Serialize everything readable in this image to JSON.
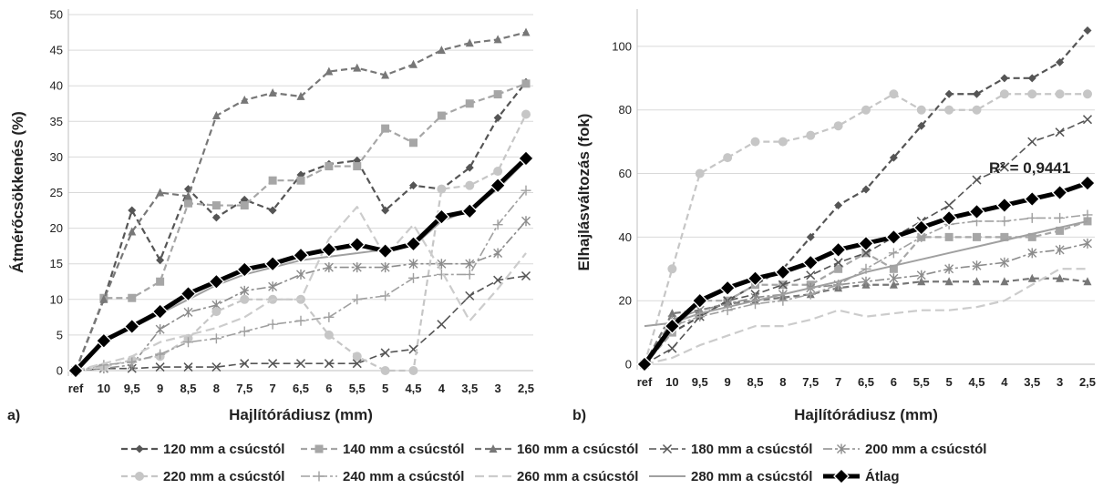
{
  "chart_data": [
    {
      "type": "line",
      "panel_label": "a)",
      "xlabel": "Hajlítórádiusz (mm)",
      "ylabel": "Átmérőcsökkenés (%)",
      "ylim": [
        0,
        50
      ],
      "yticks": [
        0,
        5,
        10,
        15,
        20,
        25,
        30,
        35,
        40,
        45,
        50
      ],
      "grid": true,
      "categories": [
        "ref",
        "10",
        "9,5",
        "9",
        "8,5",
        "8",
        "7,5",
        "7",
        "6,5",
        "6",
        "5,5",
        "5",
        "4,5",
        "4",
        "3,5",
        "3",
        "2,5"
      ],
      "series": [
        {
          "name": "120 mm a csúcstól",
          "values": [
            0,
            10,
            22.5,
            15.5,
            25.5,
            21.5,
            24,
            22.5,
            27.5,
            29,
            29.5,
            22.5,
            26,
            25.5,
            28.5,
            35.5,
            40.5
          ]
        },
        {
          "name": "140 mm a csúcstól",
          "values": [
            0,
            10.2,
            10.2,
            12.5,
            23.5,
            23.2,
            23.2,
            26.7,
            26.7,
            28.7,
            28.7,
            34,
            32,
            35.8,
            37.5,
            38.8,
            40.3
          ]
        },
        {
          "name": "160 mm a csúcstól",
          "values": [
            0,
            10,
            19.5,
            25,
            24.5,
            35.8,
            38,
            39,
            38.5,
            42,
            42.5,
            41.5,
            43,
            45,
            46,
            46.5,
            47.5
          ]
        },
        {
          "name": "180 mm a csúcstól",
          "values": [
            0,
            0.3,
            0.3,
            0.5,
            0.5,
            0.5,
            1,
            1,
            1,
            1,
            1,
            2.5,
            3,
            6.5,
            10.5,
            12.7,
            13.3
          ]
        },
        {
          "name": "200 mm a csúcstól",
          "values": [
            0,
            0.3,
            0.8,
            5.8,
            8.2,
            9.2,
            11.2,
            11.8,
            13.5,
            14.5,
            14.5,
            14.5,
            15,
            15,
            15,
            16.5,
            21
          ]
        },
        {
          "name": "220 mm a csúcstól",
          "values": [
            0,
            0.5,
            1.5,
            2,
            4.5,
            8.3,
            10,
            10,
            10,
            5,
            2,
            0,
            0,
            25.5,
            26,
            28,
            36
          ]
        },
        {
          "name": "240 mm a csúcstól",
          "values": [
            0,
            0.8,
            1.2,
            2.3,
            4,
            4.5,
            5.5,
            6.5,
            7,
            7.5,
            10,
            10.5,
            13,
            13.5,
            13.5,
            20.5,
            25.3
          ]
        },
        {
          "name": "260 mm a csúcstól",
          "values": [
            0,
            1,
            2,
            4,
            5,
            6,
            7.5,
            10,
            10,
            18.5,
            23,
            16,
            20.5,
            14,
            7,
            11.5,
            16.5
          ]
        },
        {
          "name": "280 mm a csúcstól",
          "values": [
            0,
            4,
            6,
            8,
            10,
            12,
            13.5,
            14.5,
            15.5,
            16,
            16.5,
            17,
            17.5,
            21,
            22.5,
            25.5,
            29.5
          ]
        },
        {
          "name": "Átlag",
          "values": [
            0,
            4.2,
            6.2,
            8.3,
            10.8,
            12.5,
            14.2,
            15,
            16.2,
            17,
            17.7,
            16.8,
            17.8,
            21.6,
            22.4,
            26,
            29.8
          ]
        }
      ]
    },
    {
      "type": "line",
      "panel_label": "b)",
      "xlabel": "Hajlítórádiusz (mm)",
      "ylabel": "Elhajlásváltozás (fok)",
      "ylim": [
        -2,
        110
      ],
      "yticks": [
        0,
        20,
        40,
        60,
        80,
        100
      ],
      "grid": true,
      "annotation": "R² = 0,9441",
      "categories": [
        "ref",
        "10",
        "9,5",
        "9",
        "8,5",
        "8",
        "7,5",
        "7",
        "6,5",
        "6",
        "5,5",
        "5",
        "4,5",
        "4",
        "3,5",
        "3",
        "2,5"
      ],
      "series": [
        {
          "name": "120 mm a csúcstól",
          "values": [
            0,
            10,
            15,
            20,
            25,
            30,
            40,
            50,
            55,
            65,
            75,
            85,
            85,
            90,
            90,
            95,
            105
          ]
        },
        {
          "name": "140 mm a csúcstól",
          "values": [
            0,
            10,
            20,
            20,
            25,
            25,
            25,
            30,
            35,
            30,
            40,
            40,
            40,
            40,
            40,
            42,
            45
          ]
        },
        {
          "name": "160 mm a csúcstól",
          "values": [
            0,
            16,
            17,
            19,
            20,
            21,
            22,
            24,
            25,
            25,
            26,
            26,
            26,
            26,
            27,
            27,
            26
          ]
        },
        {
          "name": "180 mm a csúcstól",
          "values": [
            0,
            5,
            15,
            20,
            22,
            25,
            28,
            32,
            35,
            40,
            45,
            50,
            58,
            62,
            70,
            73,
            77
          ]
        },
        {
          "name": "200 mm a csúcstól",
          "values": [
            0,
            14,
            17,
            19,
            21,
            22,
            24,
            25,
            26,
            27,
            28,
            30,
            31,
            32,
            35,
            36,
            38
          ]
        },
        {
          "name": "220 mm a csúcstól",
          "values": [
            0,
            30,
            60,
            65,
            70,
            70,
            72,
            75,
            80,
            85,
            80,
            80,
            80,
            85,
            85,
            85,
            85
          ]
        },
        {
          "name": "240 mm a csúcstól",
          "values": [
            0,
            12,
            15,
            17,
            19,
            20,
            22,
            25,
            30,
            35,
            40,
            44,
            45,
            45,
            46,
            46,
            47
          ]
        },
        {
          "name": "260 mm a csúcstól",
          "values": [
            0,
            2,
            6,
            9,
            12,
            12,
            14,
            17,
            15,
            16,
            17,
            17,
            18,
            20,
            25,
            30,
            30
          ]
        },
        {
          "name": "280 mm a csúcstól",
          "values": [
            12,
            13,
            16,
            18,
            20,
            22,
            24,
            26,
            29,
            31,
            33,
            35,
            37,
            39,
            41,
            43,
            45
          ]
        },
        {
          "name": "Átlag",
          "values": [
            0,
            12,
            20,
            24,
            27,
            29,
            32,
            36,
            38,
            40,
            43,
            46,
            48,
            50,
            52,
            54,
            57
          ]
        }
      ]
    }
  ],
  "styles": [
    {
      "color": "#555555",
      "dash": "7,4",
      "width": 2.2,
      "marker": "diamond"
    },
    {
      "color": "#a6a6a6",
      "dash": "7,4",
      "width": 2.2,
      "marker": "square"
    },
    {
      "color": "#777777",
      "dash": "7,4",
      "width": 2.2,
      "marker": "triangle"
    },
    {
      "color": "#555555",
      "dash": "8,4",
      "width": 1.6,
      "marker": "x"
    },
    {
      "color": "#8c8c8c",
      "dash": "10,3,3,3",
      "width": 1.6,
      "marker": "star"
    },
    {
      "color": "#c6c6c6",
      "dash": "7,4",
      "width": 2.2,
      "marker": "circle"
    },
    {
      "color": "#a0a0a0",
      "dash": "10,3,3,3",
      "width": 1.6,
      "marker": "plus"
    },
    {
      "color": "#cccccc",
      "dash": "10,5",
      "width": 2.2,
      "marker": "none"
    },
    {
      "color": "#a0a0a0",
      "dash": "",
      "width": 2,
      "marker": "none"
    },
    {
      "color": "#000000",
      "dash": "",
      "width": 5,
      "marker": "bigdiamond"
    }
  ],
  "legend": {
    "items": [
      "120 mm a csúcstól",
      "140 mm a csúcstól",
      "160 mm a csúcstól",
      "180 mm a csúcstól",
      "200 mm a csúcstól",
      "220 mm a csúcstól",
      "240 mm a csúcstól",
      "260 mm a csúcstól",
      "280 mm a csúcstól",
      "Átlag"
    ]
  }
}
